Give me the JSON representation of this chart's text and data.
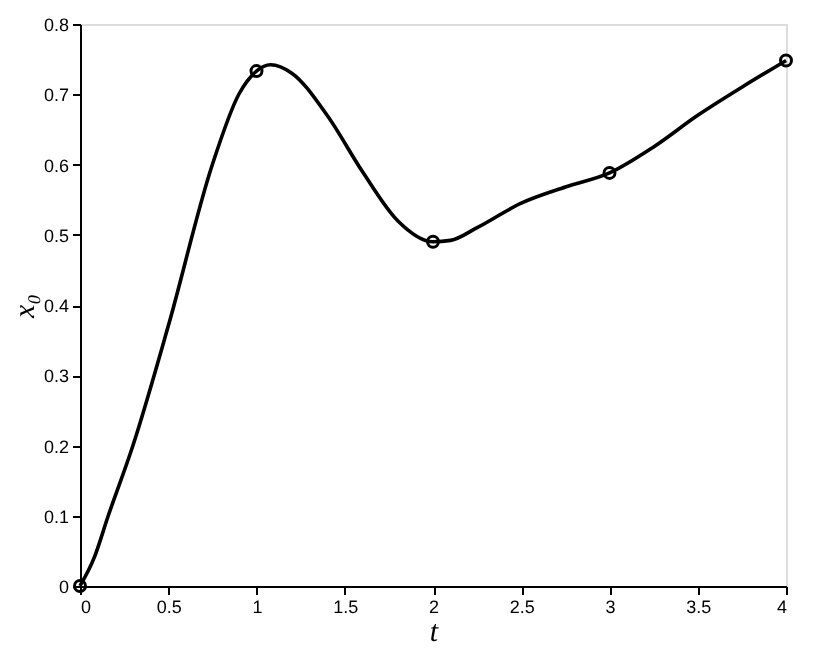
{
  "chart_data": {
    "type": "line",
    "xlabel": "t",
    "ylabel": "x₀",
    "xlim": [
      0,
      4
    ],
    "xticks": [
      0,
      0.5,
      1,
      1.5,
      2,
      2.5,
      3,
      3.5,
      4
    ],
    "ylim": [
      0,
      0.8
    ],
    "yticks": [
      0,
      0.1,
      0.2,
      0.3,
      0.4,
      0.5,
      0.6,
      0.7,
      0.8
    ],
    "series": [
      {
        "color": "#000000",
        "marker": "none",
        "line_style": "solid",
        "x": [
          0,
          0.08,
          0.16,
          0.3,
          0.5,
          0.75,
          0.9,
          1,
          1.08,
          1.2,
          1.4,
          1.6,
          1.8,
          2,
          2.1,
          2.25,
          2.5,
          2.75,
          3,
          3.25,
          3.5,
          3.75,
          4
        ],
        "values": [
          0,
          0.04,
          0.1,
          0.2,
          0.37,
          0.6,
          0.7,
          0.733,
          0.742,
          0.73,
          0.67,
          0.59,
          0.52,
          0.49,
          0.492,
          0.51,
          0.545,
          0.568,
          0.588,
          0.625,
          0.67,
          0.71,
          0.748
        ]
      },
      {
        "type": "scatter",
        "color": "#000000",
        "marker": "circle",
        "x": [
          0,
          1,
          2,
          3,
          4
        ],
        "values": [
          0,
          0.733,
          0.49,
          0.588,
          0.748
        ]
      }
    ]
  }
}
